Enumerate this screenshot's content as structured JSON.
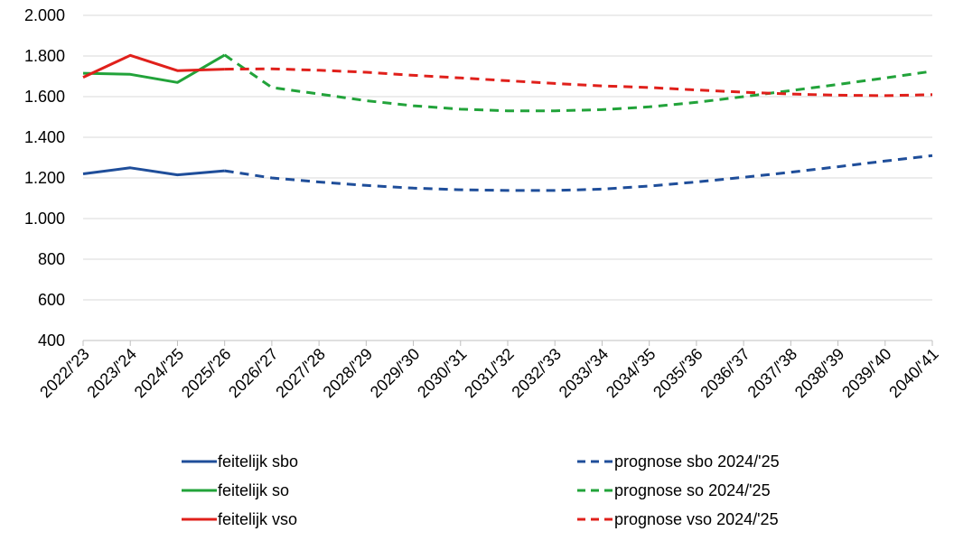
{
  "chart_data": {
    "type": "line",
    "title": "",
    "xlabel": "",
    "ylabel": "",
    "ylim": [
      400,
      2000
    ],
    "yticks": [
      400,
      600,
      800,
      1000,
      1200,
      1400,
      1600,
      1800,
      2000
    ],
    "ytick_labels": [
      "400",
      "600",
      "800",
      "1.000",
      "1.200",
      "1.400",
      "1.600",
      "1.800",
      "2.000"
    ],
    "grid": true,
    "legend_position": "bottom",
    "categories": [
      "2022/'23",
      "2023/'24",
      "2024/'25",
      "2025/'26",
      "2026/'27",
      "2027/'28",
      "2028/'29",
      "2029/'30",
      "2030/'31",
      "2031/'32",
      "2032/'33",
      "2033/'34",
      "2034/'35",
      "2035/'36",
      "2036/'37",
      "2037/'38",
      "2038/'39",
      "2039/'40",
      "2040/'41"
    ],
    "series": [
      {
        "name": "feitelijk sbo",
        "color": "#1f4e9a",
        "dash": false,
        "values": [
          1220,
          1250,
          1215,
          1235,
          null,
          null,
          null,
          null,
          null,
          null,
          null,
          null,
          null,
          null,
          null,
          null,
          null,
          null,
          null
        ]
      },
      {
        "name": "prognose sbo 2024/'25",
        "color": "#1f4e9a",
        "dash": true,
        "values": [
          null,
          null,
          null,
          1235,
          1200,
          1180,
          1163,
          1150,
          1142,
          1138,
          1138,
          1145,
          1160,
          1180,
          1203,
          1228,
          1255,
          1283,
          1310
        ]
      },
      {
        "name": "feitelijk so",
        "color": "#22a33a",
        "dash": false,
        "values": [
          1715,
          1710,
          1670,
          1805,
          null,
          null,
          null,
          null,
          null,
          null,
          null,
          null,
          null,
          null,
          null,
          null,
          null,
          null,
          null
        ]
      },
      {
        "name": "prognose so 2024/'25",
        "color": "#22a33a",
        "dash": true,
        "values": [
          null,
          null,
          null,
          1805,
          1645,
          1613,
          1580,
          1555,
          1538,
          1530,
          1530,
          1536,
          1550,
          1572,
          1600,
          1630,
          1660,
          1692,
          1725
        ]
      },
      {
        "name": "feitelijk vso",
        "color": "#e0201b",
        "dash": false,
        "values": [
          1695,
          1803,
          1728,
          1735,
          null,
          null,
          null,
          null,
          null,
          null,
          null,
          null,
          null,
          null,
          null,
          null,
          null,
          null,
          null
        ]
      },
      {
        "name": "prognose vso 2024/'25",
        "color": "#e0201b",
        "dash": true,
        "values": [
          null,
          null,
          null,
          1735,
          1737,
          1730,
          1720,
          1705,
          1692,
          1678,
          1665,
          1653,
          1645,
          1633,
          1622,
          1613,
          1607,
          1605,
          1610
        ]
      }
    ],
    "legend_order": [
      0,
      1,
      2,
      3,
      4,
      5
    ]
  }
}
